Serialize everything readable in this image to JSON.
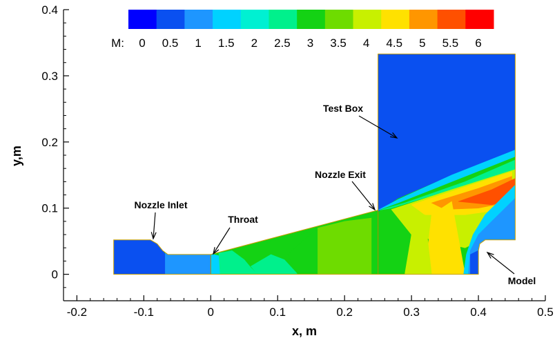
{
  "chart_data": {
    "type": "contour",
    "xlabel": "x, m",
    "ylabel": "y,m",
    "xlim": [
      -0.22,
      0.5
    ],
    "ylim": [
      -0.04,
      0.4
    ],
    "xticks": [
      "-0.2",
      "-0.1",
      "0",
      "0.1",
      "0.2",
      "0.3",
      "0.4",
      "0.5"
    ],
    "yticks": [
      "0",
      "0.1",
      "0.2",
      "0.3",
      "0.4"
    ],
    "xtick_values": [
      -0.2,
      -0.1,
      0,
      0.1,
      0.2,
      0.3,
      0.4,
      0.5
    ],
    "ytick_values": [
      0,
      0.1,
      0.2,
      0.3,
      0.4
    ],
    "colorbar": {
      "label": "M:",
      "ticks": [
        "0",
        "0.5",
        "1",
        "1.5",
        "2",
        "2.5",
        "3",
        "3.5",
        "4",
        "4.5",
        "5",
        "5.5",
        "6"
      ],
      "levels": [
        0,
        0.5,
        1,
        1.5,
        2,
        2.5,
        3,
        3.5,
        4,
        4.5,
        5,
        5.5,
        6
      ],
      "colors": [
        "#0000ff",
        "#0a50f0",
        "#1e96ff",
        "#00d2ff",
        "#00f0d2",
        "#00f08c",
        "#14d214",
        "#6edc00",
        "#c8f000",
        "#ffe100",
        "#ff9600",
        "#ff5000",
        "#ff0000"
      ]
    },
    "annotations": [
      {
        "text": "Nozzle Inlet",
        "x": -0.096,
        "y": 0.052
      },
      {
        "text": "Throat",
        "x": 0.002,
        "y": 0.031
      },
      {
        "text": "Nozzle Exit",
        "x": 0.25,
        "y": 0.097
      },
      {
        "text": "Test Box",
        "x": 0.283,
        "y": 0.2
      },
      {
        "text": "Model",
        "x": 0.402,
        "y": 0.036
      }
    ],
    "nozzle_region": {
      "inlet_x": -0.145,
      "inlet_height": 0.052,
      "throat_x": 0.0,
      "throat_height": 0.03,
      "exit_x": 0.25,
      "exit_height": 0.097,
      "test_box_x": [
        0.25,
        0.455
      ],
      "test_box_top": 0.333,
      "model_x": [
        0.388,
        0.4
      ],
      "model_step_y": 0.052
    }
  }
}
